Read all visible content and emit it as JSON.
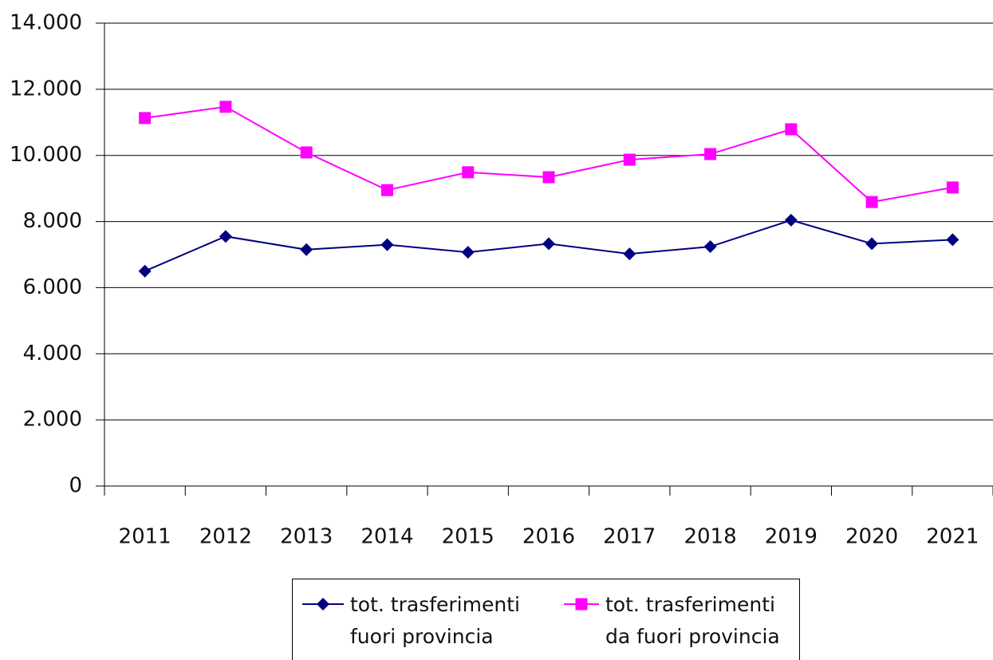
{
  "chart_data": {
    "type": "line",
    "categories": [
      "2011",
      "2012",
      "2013",
      "2014",
      "2015",
      "2016",
      "2017",
      "2018",
      "2019",
      "2020",
      "2021"
    ],
    "series": [
      {
        "name": "tot. trasferimenti fuori provincia",
        "color": "#000080",
        "marker": "diamond",
        "values": [
          6500,
          7550,
          7150,
          7300,
          7070,
          7330,
          7020,
          7240,
          8040,
          7330,
          7450
        ]
      },
      {
        "name": "tot. trasferimenti da fuori provincia",
        "color": "#ff00ff",
        "marker": "square",
        "values": [
          11130,
          11470,
          10090,
          8950,
          9490,
          9340,
          9870,
          10040,
          10790,
          8590,
          9030
        ]
      }
    ],
    "ylim": [
      0,
      14000
    ],
    "yticks": [
      0,
      {
        "value": 2000,
        "label": "2.000"
      },
      {
        "value": 4000,
        "label": "4.000"
      },
      {
        "value": 6000,
        "label": "6.000"
      },
      {
        "value": 8000,
        "label": "8.000"
      },
      {
        "value": 10000,
        "label": "10.000"
      },
      {
        "value": 12000,
        "label": "12.000"
      },
      {
        "value": 14000,
        "label": "14.000"
      }
    ],
    "grid": true,
    "legend": "bottom"
  }
}
